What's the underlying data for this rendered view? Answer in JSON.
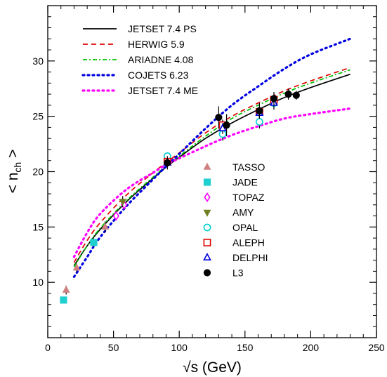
{
  "chart_data": {
    "type": "scatter",
    "title": "",
    "xlabel": "√s  (GeV)",
    "ylabel_main": "< n",
    "ylabel_sub": "ch",
    "ylabel_close": " >",
    "xlim": [
      0,
      250
    ],
    "ylim": [
      5,
      35
    ],
    "x_ticks": [
      0,
      50,
      100,
      150,
      200,
      250
    ],
    "y_ticks": [
      10,
      15,
      20,
      25,
      30
    ],
    "grid": false,
    "legend_lines_position": "top-left",
    "legend_points_position": "center-right",
    "model_curves": [
      {
        "name": "JETSET 7.4 PS",
        "color": "#000000",
        "style": "solid",
        "x": [
          20,
          30,
          40,
          60,
          80,
          91,
          100,
          120,
          140,
          160,
          180,
          200,
          230
        ],
        "y": [
          11.5,
          13.3,
          14.8,
          17.3,
          19.4,
          20.5,
          21.3,
          23.0,
          24.4,
          25.6,
          26.7,
          27.6,
          28.8
        ]
      },
      {
        "name": "HERWIG 5.9",
        "color": "#e00000",
        "style": "dashed",
        "x": [
          20,
          30,
          40,
          60,
          80,
          91,
          100,
          120,
          140,
          160,
          180,
          200,
          230
        ],
        "y": [
          11.8,
          13.8,
          15.4,
          17.9,
          19.9,
          20.9,
          21.7,
          23.5,
          25.0,
          26.2,
          27.3,
          28.2,
          29.4
        ]
      },
      {
        "name": "ARIADNE 4.08",
        "color": "#00c000",
        "style": "dashdot",
        "x": [
          20,
          30,
          40,
          60,
          80,
          91,
          100,
          120,
          140,
          160,
          180,
          200,
          230
        ],
        "y": [
          11.4,
          13.3,
          14.9,
          17.4,
          19.5,
          20.6,
          21.4,
          23.2,
          24.8,
          26.0,
          27.1,
          28.0,
          29.2
        ]
      },
      {
        "name": "COJETS  6.23",
        "color": "#0000e0",
        "style": "dotted",
        "x": [
          20,
          30,
          40,
          60,
          80,
          91,
          100,
          120,
          140,
          160,
          180,
          200,
          230
        ],
        "y": [
          10.5,
          12.3,
          14.1,
          16.9,
          19.3,
          20.6,
          21.6,
          23.9,
          26.0,
          27.7,
          29.3,
          30.6,
          32.0
        ]
      },
      {
        "name": "JETSET 7.4 ME",
        "color": "#ff00ff",
        "style": "dotted",
        "x": [
          20,
          30,
          40,
          60,
          80,
          91,
          100,
          120,
          140,
          160,
          180,
          200,
          230
        ],
        "y": [
          12.3,
          14.5,
          16.2,
          18.4,
          19.9,
          20.7,
          21.2,
          22.3,
          23.3,
          24.1,
          24.8,
          25.2,
          25.7
        ]
      }
    ],
    "experiments": [
      {
        "name": "TASSO",
        "marker": "triangle-up-filled",
        "color": "#d08080",
        "points": [
          {
            "x": 14,
            "y": 9.3,
            "err": 0.4
          },
          {
            "x": 22,
            "y": 11.3,
            "err": 0.4
          },
          {
            "x": 34.8,
            "y": 13.6,
            "err": 0.4
          },
          {
            "x": 43.6,
            "y": 15.0,
            "err": 0.5
          }
        ]
      },
      {
        "name": "JADE",
        "marker": "square-filled",
        "color": "#20d0d0",
        "points": [
          {
            "x": 12,
            "y": 8.4,
            "err": 0.3
          },
          {
            "x": 35,
            "y": 13.6,
            "err": 0.3
          }
        ]
      },
      {
        "name": "TOPAZ",
        "marker": "diamond-open",
        "color": "#ff00ff",
        "points": [
          {
            "x": 52,
            "y": 16.0,
            "err": 0.4
          },
          {
            "x": 58,
            "y": 17.0,
            "err": 0.4
          }
        ]
      },
      {
        "name": "AMY",
        "marker": "triangle-down-filled",
        "color": "#708020",
        "points": [
          {
            "x": 57,
            "y": 17.3,
            "err": 0.5
          }
        ]
      },
      {
        "name": "OPAL",
        "marker": "circle-open",
        "color": "#00d0d0",
        "points": [
          {
            "x": 91,
            "y": 21.4,
            "err": 0.3
          },
          {
            "x": 133,
            "y": 23.4,
            "err": 0.6
          },
          {
            "x": 161,
            "y": 24.5,
            "err": 0.6
          },
          {
            "x": 172,
            "y": 26.2,
            "err": 0.6
          }
        ]
      },
      {
        "name": "ALEPH",
        "marker": "square-open",
        "color": "#e00000",
        "points": [
          {
            "x": 91,
            "y": 20.9,
            "err": 0.3
          },
          {
            "x": 133,
            "y": 24.2,
            "err": 0.5
          },
          {
            "x": 161,
            "y": 25.4,
            "err": 0.5
          },
          {
            "x": 172,
            "y": 26.5,
            "err": 0.5
          }
        ]
      },
      {
        "name": "DELPHI",
        "marker": "triangle-up-open",
        "color": "#0000e0",
        "points": [
          {
            "x": 91,
            "y": 20.8,
            "err": 0.3
          },
          {
            "x": 133,
            "y": 23.9,
            "err": 0.5
          },
          {
            "x": 161,
            "y": 25.3,
            "err": 0.5
          },
          {
            "x": 172,
            "y": 26.2,
            "err": 0.5
          }
        ]
      },
      {
        "name": "L3",
        "marker": "circle-filled",
        "color": "#000000",
        "points": [
          {
            "x": 91,
            "y": 20.8,
            "err": 0.6
          },
          {
            "x": 130,
            "y": 24.9,
            "err": 1.0
          },
          {
            "x": 136,
            "y": 24.2,
            "err": 1.0
          },
          {
            "x": 161,
            "y": 25.5,
            "err": 0.7
          },
          {
            "x": 172,
            "y": 26.6,
            "err": 0.6
          },
          {
            "x": 183,
            "y": 27.0,
            "err": 0.5
          },
          {
            "x": 189,
            "y": 26.9,
            "err": 0.4
          }
        ]
      }
    ]
  }
}
